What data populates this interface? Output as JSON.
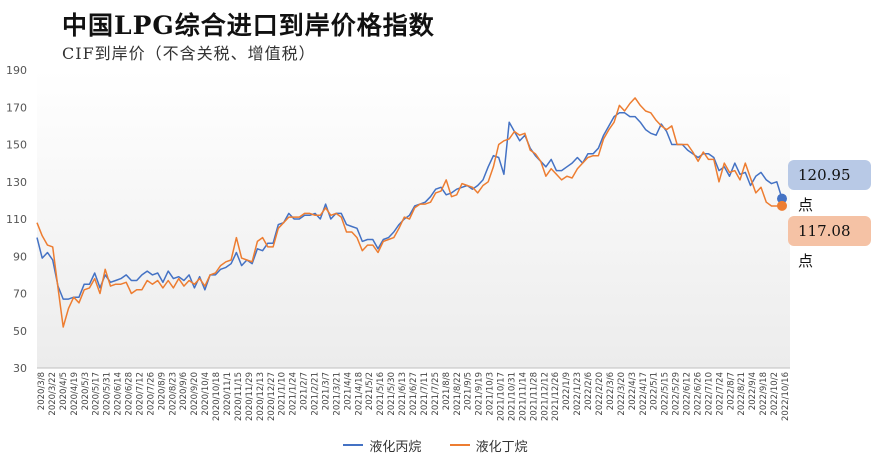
{
  "title": "中国LPG综合进口到岸价格指数",
  "subtitle": "CIF到岸价（不含关税、增值税）",
  "chart_data": {
    "type": "line",
    "ylim": [
      30,
      190
    ],
    "yticks": [
      30,
      50,
      70,
      90,
      110,
      130,
      150,
      170,
      190
    ],
    "x_tick_labels": [
      "2020/3/8",
      "2020/3/22",
      "2020/4/5",
      "2020/4/19",
      "2020/5/3",
      "2020/5/17",
      "2020/5/31",
      "2020/6/14",
      "2020/6/28",
      "2020/7/12",
      "2020/7/26",
      "2020/8/9",
      "2020/8/23",
      "2020/9/6",
      "2020/9/20",
      "2020/10/4",
      "2020/10/18",
      "2020/11/1",
      "2020/11/15",
      "2020/11/29",
      "2020/12/13",
      "2020/12/27",
      "2021/1/10",
      "2021/1/24",
      "2021/2/7",
      "2021/2/21",
      "2021/3/7",
      "2021/3/21",
      "2021/4/4",
      "2021/4/18",
      "2021/5/2",
      "2021/5/16",
      "2021/5/30",
      "2021/6/13",
      "2021/6/27",
      "2021/7/11",
      "2021/7/25",
      "2021/8/8",
      "2021/8/22",
      "2021/9/5",
      "2021/9/19",
      "2021/10/3",
      "2021/10/17",
      "2021/10/31",
      "2021/11/14",
      "2021/11/28",
      "2021/12/12",
      "2021/12/26",
      "2022/1/9",
      "2022/1/23",
      "2022/2/6",
      "2022/2/20",
      "2022/3/6",
      "2022/3/20",
      "2022/4/3",
      "2022/4/17",
      "2022/5/1",
      "2022/5/15",
      "2022/5/29",
      "2022/6/12",
      "2022/6/26",
      "2022/7/10",
      "2022/7/24",
      "2022/8/7",
      "2022/8/21",
      "2022/9/4",
      "2022/9/18",
      "2022/10/2",
      "2022/10/16"
    ],
    "series": [
      {
        "name": "液化丙烷",
        "color": "#4472c4",
        "values": [
          100,
          89,
          92,
          88,
          74,
          67,
          67,
          68,
          68,
          75,
          75,
          81,
          73,
          80,
          76,
          77,
          78,
          80,
          77,
          77,
          80,
          82,
          80,
          81,
          76,
          82,
          78,
          79,
          77,
          80,
          73,
          79,
          72,
          80,
          80,
          83,
          84,
          86,
          92,
          85,
          88,
          86,
          94,
          93,
          97,
          97,
          107,
          108,
          113,
          110,
          110,
          112,
          112,
          113,
          110,
          118,
          110,
          113,
          113,
          107,
          106,
          105,
          98,
          99,
          99,
          94,
          99,
          100,
          103,
          107,
          110,
          112,
          117,
          118,
          119,
          122,
          126,
          127,
          123,
          124,
          126,
          127,
          128,
          126,
          128,
          131,
          138,
          144,
          143,
          134,
          162,
          157,
          152,
          155,
          148,
          144,
          141,
          138,
          142,
          136,
          136,
          138,
          140,
          143,
          140,
          145,
          145,
          148,
          155,
          160,
          165,
          167,
          167,
          165,
          165,
          162,
          158,
          156,
          155,
          161,
          157,
          150,
          150,
          150,
          147,
          145,
          143,
          145,
          145,
          143,
          136,
          138,
          133,
          140,
          134,
          135,
          128,
          133,
          135,
          131,
          129,
          130,
          121
        ]
      },
      {
        "name": "液化丁烷",
        "color": "#ed7d31",
        "values": [
          108,
          101,
          96,
          95,
          73,
          52,
          62,
          68,
          65,
          72,
          73,
          78,
          70,
          83,
          74,
          75,
          75,
          76,
          70,
          72,
          72,
          77,
          75,
          77,
          73,
          77,
          73,
          78,
          74,
          77,
          75,
          78,
          74,
          80,
          81,
          85,
          87,
          88,
          100,
          89,
          88,
          87,
          98,
          100,
          95,
          95,
          105,
          108,
          111,
          111,
          111,
          113,
          113,
          112,
          112,
          116,
          112,
          113,
          111,
          103,
          103,
          100,
          93,
          96,
          96,
          92,
          98,
          99,
          100,
          105,
          111,
          110,
          116,
          118,
          118,
          119,
          124,
          125,
          131,
          122,
          123,
          129,
          128,
          127,
          124,
          128,
          130,
          138,
          150,
          152,
          153,
          157,
          155,
          156,
          147,
          145,
          141,
          133,
          137,
          134,
          131,
          133,
          132,
          137,
          140,
          143,
          144,
          144,
          153,
          158,
          162,
          171,
          168,
          172,
          175,
          171,
          168,
          167,
          163,
          160,
          158,
          160,
          150,
          150,
          150,
          146,
          141,
          146,
          142,
          142,
          130,
          140,
          135,
          136,
          131,
          140,
          132,
          124,
          127,
          119,
          117,
          117,
          117
        ]
      }
    ],
    "end_labels": {
      "propane": "120.95点",
      "butane": "117.08点"
    },
    "last_values": {
      "propane": 120.95,
      "butane": 117.08
    }
  }
}
